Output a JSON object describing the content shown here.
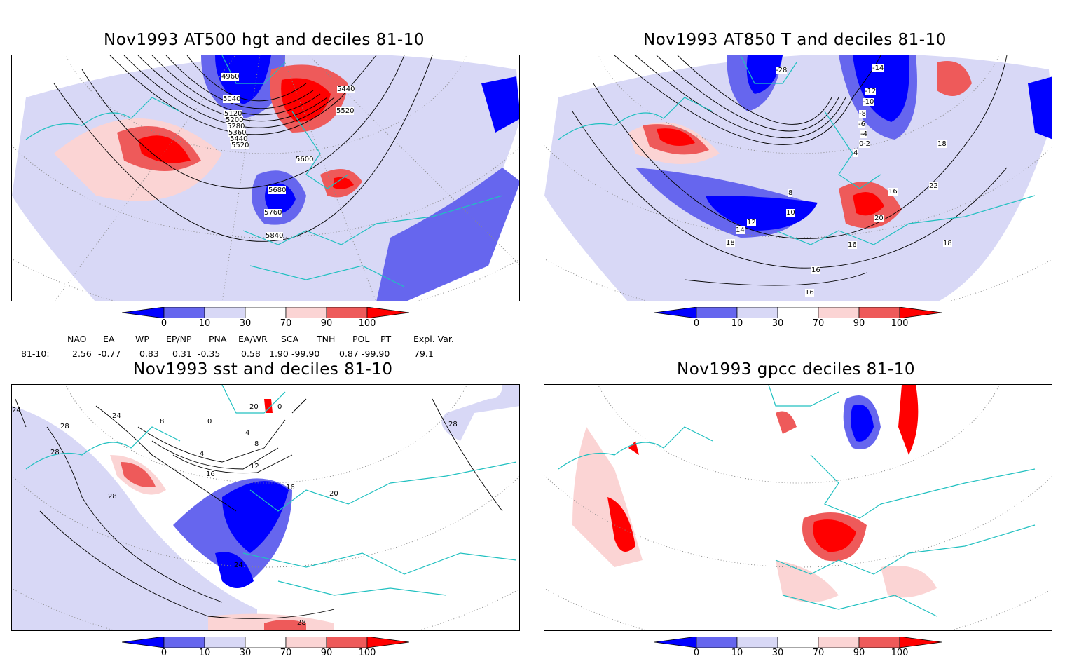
{
  "panels": [
    {
      "title": "Nov1993 AT500 hgt and deciles 81-10",
      "contour_labels": [
        "4960",
        "5040",
        "5120",
        "5200",
        "5280",
        "5360",
        "5440",
        "5520",
        "5600",
        "5440",
        "5520",
        "5680",
        "5760",
        "5840"
      ]
    },
    {
      "title": "Nov1993 AT850 T and deciles 81-10",
      "contour_labels": [
        "-28",
        "-14",
        "-12",
        "-10",
        "-8",
        "-6",
        "-4",
        "-2",
        "0",
        "4",
        "8",
        "10",
        "12",
        "14",
        "16",
        "18",
        "20",
        "22",
        "16",
        "18",
        "16",
        "16",
        "18"
      ]
    },
    {
      "title": "Nov1993 sst and deciles 81-10",
      "contour_labels": [
        "24",
        "28",
        "28",
        "24",
        "8",
        "0",
        "4",
        "8",
        "12",
        "16",
        "20",
        "24",
        "28",
        "28",
        "16",
        "20",
        "28",
        "0",
        "4"
      ]
    },
    {
      "title": "Nov1993 gpcc deciles 81-10",
      "contour_labels": []
    }
  ],
  "colorbar": {
    "labels": [
      "0",
      "10",
      "30",
      "70",
      "90",
      "100"
    ],
    "colors": [
      "#0000ff",
      "#6666ee",
      "#d8d8f6",
      "#ffffff",
      "#fbd4d4",
      "#ee5a5a",
      "#ff0000"
    ]
  },
  "teleconnections": {
    "headers": [
      "NAO",
      "EA",
      "WP",
      "EP/NP",
      "PNA",
      "EA/WR",
      "SCA",
      "TNH",
      "POL",
      "PT",
      "Expl. Var."
    ],
    "row_label": "81-10:",
    "values": [
      "2.56",
      "-0.77",
      "0.83",
      "0.31",
      "-0.35",
      "0.58",
      "1.90",
      "-99.90",
      "0.87",
      "-99.90",
      "79.1"
    ]
  },
  "colors": {
    "coast": "#20c0c0",
    "grid": "#888888",
    "contour": "#000000"
  }
}
